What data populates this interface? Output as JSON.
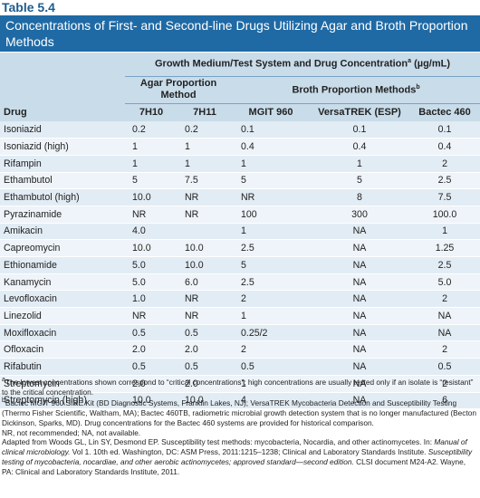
{
  "table_label": "Table 5.4",
  "title": "Concentrations of First- and Second-line Drugs Utilizing Agar and Broth Proportion Methods",
  "headers": {
    "group": "Growth Medium/Test System and Drug Concentration",
    "group_sup": "a",
    "group_unit": " (µg/mL)",
    "agar": "Agar Proportion Method",
    "broth": "Broth Proportion Methods",
    "broth_sup": "b",
    "drug": "Drug",
    "c7h10": "7H10",
    "c7h11": "7H11",
    "mgit": "MGIT 960",
    "versa": "VersaTREK (ESP)",
    "bactec": "Bactec 460"
  },
  "rows": [
    {
      "drug": "Isoniazid",
      "h10": "0.2",
      "h11": "0.2",
      "mgit": "0.1",
      "versa": "0.1",
      "bactec": "0.1"
    },
    {
      "drug": "Isoniazid (high)",
      "h10": "1",
      "h11": "1",
      "mgit": "0.4",
      "versa": "0.4",
      "bactec": "0.4"
    },
    {
      "drug": "Rifampin",
      "h10": "1",
      "h11": "1",
      "mgit": "1",
      "versa": "1",
      "bactec": "2"
    },
    {
      "drug": "Ethambutol",
      "h10": "5",
      "h11": "7.5",
      "mgit": "5",
      "versa": "5",
      "bactec": "2.5"
    },
    {
      "drug": "Ethambutol (high)",
      "h10": "10.0",
      "h11": "NR",
      "mgit": "NR",
      "versa": "8",
      "bactec": "7.5"
    },
    {
      "drug": "Pyrazinamide",
      "h10": "NR",
      "h11": "NR",
      "mgit": "100",
      "versa": "300",
      "bactec": "100.0"
    },
    {
      "drug": "Amikacin",
      "h10": "4.0",
      "h11": "",
      "mgit": "1",
      "versa": "NA",
      "bactec": "1"
    },
    {
      "drug": "Capreomycin",
      "h10": "10.0",
      "h11": "10.0",
      "mgit": "2.5",
      "versa": "NA",
      "bactec": "1.25"
    },
    {
      "drug": "Ethionamide",
      "h10": "5.0",
      "h11": "10.0",
      "mgit": "5",
      "versa": "NA",
      "bactec": "2.5"
    },
    {
      "drug": "Kanamycin",
      "h10": "5.0",
      "h11": "6.0",
      "mgit": "2.5",
      "versa": "NA",
      "bactec": "5.0"
    },
    {
      "drug": "Levofloxacin",
      "h10": "1.0",
      "h11": "NR",
      "mgit": "2",
      "versa": "NA",
      "bactec": "2"
    },
    {
      "drug": "Linezolid",
      "h10": "NR",
      "h11": "NR",
      "mgit": "1",
      "versa": "NA",
      "bactec": "NA"
    },
    {
      "drug": "Moxifloxacin",
      "h10": "0.5",
      "h11": "0.5",
      "mgit": "0.25/2",
      "versa": "NA",
      "bactec": "NA"
    },
    {
      "drug": "Ofloxacin",
      "h10": "2.0",
      "h11": "2.0",
      "mgit": "2",
      "versa": "NA",
      "bactec": "2"
    },
    {
      "drug": "Rifabutin",
      "h10": "0.5",
      "h11": "0.5",
      "mgit": "0.5",
      "versa": "NA",
      "bactec": "0.5"
    },
    {
      "drug": "Streptomycin",
      "h10": "2.0",
      "h11": "2.0",
      "mgit": "1",
      "versa": "NA",
      "bactec": "2"
    },
    {
      "drug": "Streptomycin (high)",
      "h10": "10.0",
      "h11": "10.0",
      "mgit": "4",
      "versa": "NA",
      "bactec": "6"
    }
  ],
  "footnotes": {
    "a_marker": "a",
    "a": "The lowest concentrations shown correspond to “critical concentrations”; high concentrations are usually tested only if an isolate is “resistant” to the critical concentration.",
    "b_marker": "b",
    "b": "Bactec MGIT 960 SIRE Kit (BD Diagnostic Systems, Franklin Lakes, NJ); VersaTREK Mycobacteria Detection and Susceptibility Testing (Thermo Fisher Scientific, Waltham, MA); Bactec 460TB, radiometric microbial growth detection system that is no longer manufactured (Becton Dickinson, Sparks, MD). Drug concentrations for the Bactec 460 systems are provided for historical comparison.",
    "nr": "NR, not recommended; NA, not available.",
    "adapted_1": "Adapted from Woods GL, Lin SY, Desmond EP. Susceptibility test methods: mycobacteria, Nocardia, and other actinomycetes. In: ",
    "adapted_ital1": "Manual of clinical microbiology.",
    "adapted_2": " Vol 1. 10th ed. Washington, DC: ASM Press, 2011:1215–1238; Clinical and Laboratory Standards Institute. ",
    "adapted_ital2": "Susceptibility testing of mycobacteria, nocardiae, and other aerobic actinomycetes; approved standard—second edition.",
    "adapted_3": " CLSI document M24-A2. Wayne, PA: Clinical and Laboratory Standards Institute, 2011."
  }
}
